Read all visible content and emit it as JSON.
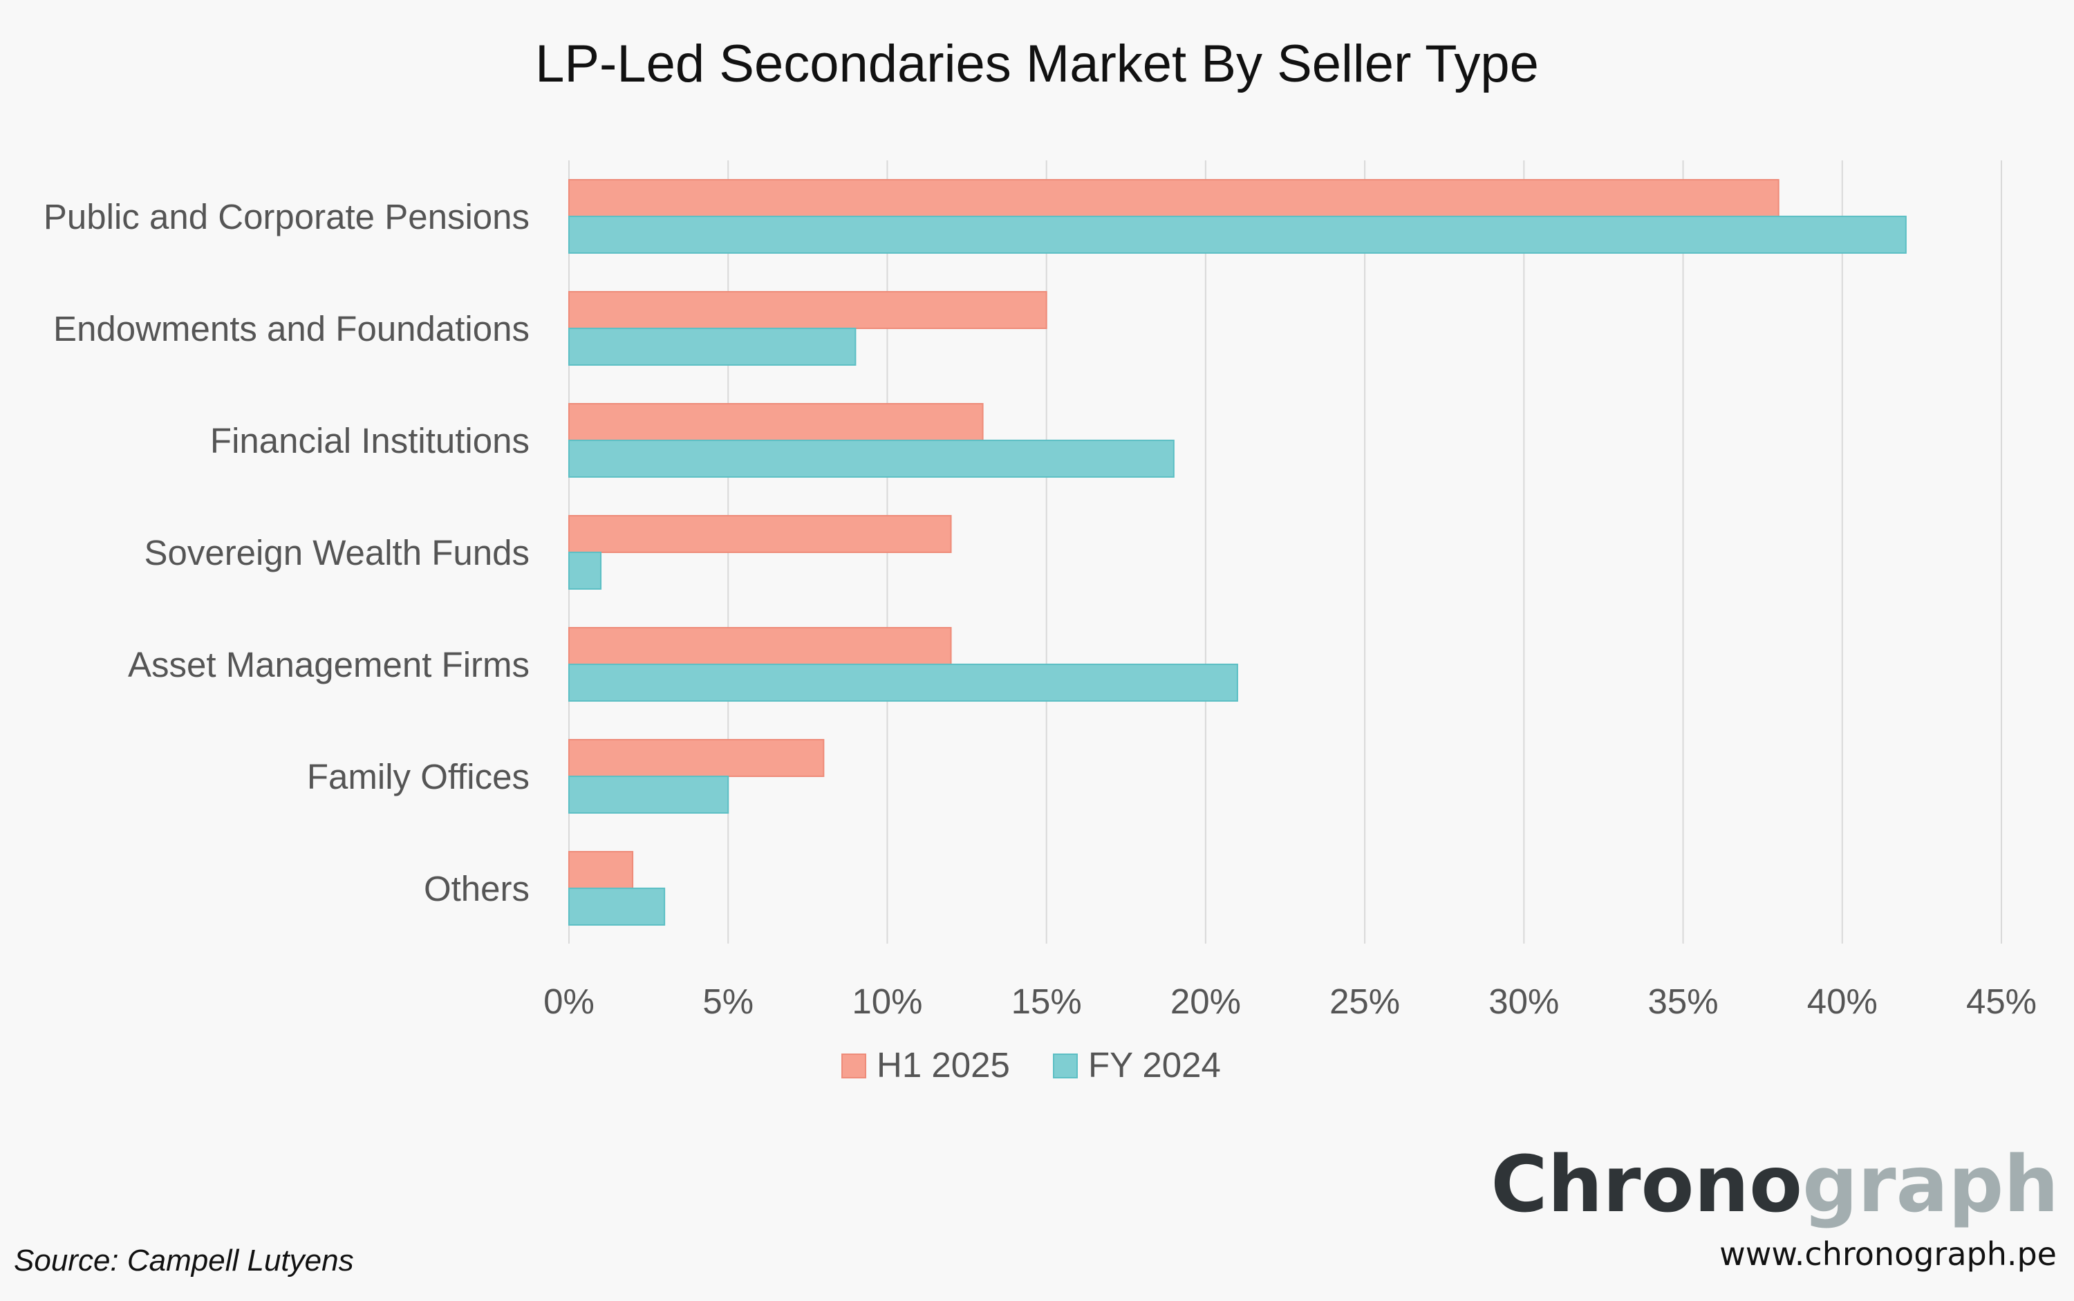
{
  "chart_data": {
    "type": "bar",
    "orientation": "horizontal",
    "title": "LP-Led Secondaries Market By Seller Type",
    "categories": [
      "Public and Corporate Pensions",
      "Endowments and Foundations",
      "Financial Institutions",
      "Sovereign Wealth Funds",
      "Asset Management Firms",
      "Family Offices",
      "Others"
    ],
    "series": [
      {
        "name": "H1 2025",
        "color": "#f7a190",
        "values": [
          38,
          15,
          13,
          12,
          12,
          8,
          2
        ]
      },
      {
        "name": "FY 2024",
        "color": "#7fced2",
        "values": [
          42,
          9,
          19,
          1,
          21,
          5,
          3
        ]
      }
    ],
    "xlim": [
      0,
      45
    ],
    "xticks": [
      0,
      5,
      10,
      15,
      20,
      25,
      30,
      35,
      40,
      45
    ],
    "tick_suffix": "%",
    "grid": true,
    "legend": "bottom-center"
  },
  "footer": {
    "source": "Source: Campell Lutyens",
    "logo_part1": "Chrono",
    "logo_part2": "graph",
    "website": "www.chronograph.pe"
  }
}
